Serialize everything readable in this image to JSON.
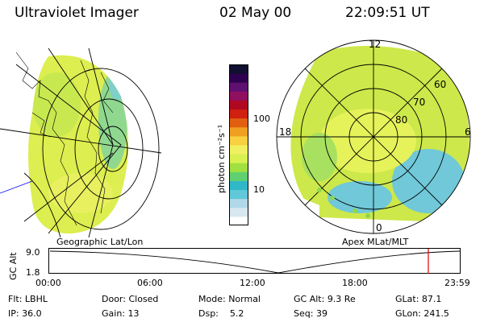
{
  "header": {
    "title": "Ultraviolet Imager",
    "date": "02 May 00",
    "time": "22:09:51 UT"
  },
  "panels": {
    "left_label": "Geographic Lat/Lon",
    "right_label": "Apex MLat/MLT"
  },
  "colorbar": {
    "label": "photon cm⁻²s⁻¹",
    "ticks": [
      "100",
      "10"
    ],
    "colors": [
      "#ffffff",
      "#d8e8f0",
      "#b0d8e8",
      "#60c8d8",
      "#30b8c8",
      "#60d070",
      "#a0e040",
      "#d8f050",
      "#f0f060",
      "#f8d040",
      "#f0a020",
      "#e06010",
      "#d02010",
      "#b00820",
      "#901060",
      "#601070",
      "#300050",
      "#101030"
    ]
  },
  "polar": {
    "mlt_labels": [
      "12",
      "18",
      "6",
      "0"
    ],
    "mlat_labels": [
      "60",
      "70",
      "80"
    ]
  },
  "altitude_plot": {
    "ylabel": "GC Alt",
    "y_ticks": [
      "9.0",
      "1.8"
    ],
    "x_ticks": [
      "00:00",
      "06:00",
      "12:00",
      "18:00",
      "23:59"
    ],
    "marker_color": "#e00000",
    "marker_hour": 22.16
  },
  "info": {
    "row1": [
      {
        "label": "Flt:",
        "value": "LBHL"
      },
      {
        "label": "Door:",
        "value": "Closed"
      },
      {
        "label": "Mode:",
        "value": "Normal"
      },
      {
        "label": "GC Alt:",
        "value": "9.3 Re"
      },
      {
        "label": "GLat:",
        "value": "87.1"
      }
    ],
    "row2": [
      {
        "label": "IP:",
        "value": "36.0"
      },
      {
        "label": "Gain:",
        "value": "13"
      },
      {
        "label": "Dsp:",
        "value": "5.2"
      },
      {
        "label": "Seq:",
        "value": "39"
      },
      {
        "label": "GLon:",
        "value": "241.5"
      }
    ]
  }
}
